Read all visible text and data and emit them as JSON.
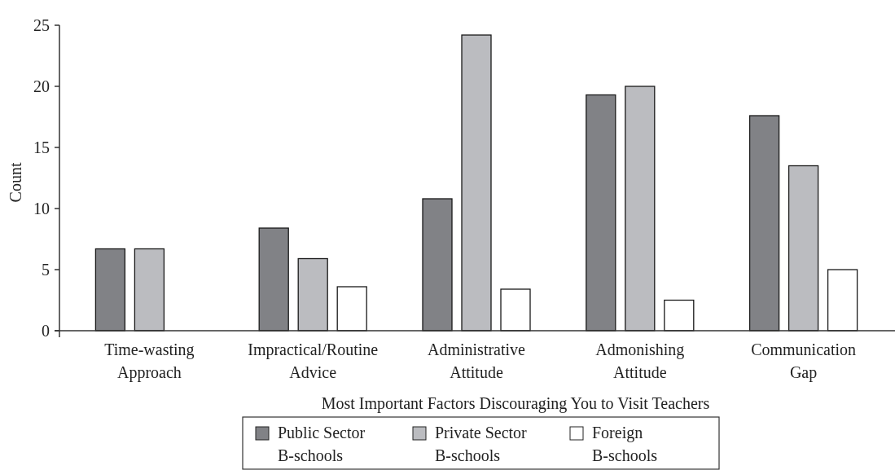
{
  "chart_data": {
    "type": "bar",
    "xlabel": "Most Important Factors Discouraging You to Visit Teachers",
    "ylabel": "Count",
    "categories": [
      "Time-wasting Approach",
      "Impractical/Routine Advice",
      "Administrative Attitude",
      "Admonishing Attitude",
      "Communication Gap"
    ],
    "series": [
      {
        "name": "Public Sector B-schools",
        "color": "#818286",
        "values": [
          6.7,
          8.4,
          10.8,
          19.3,
          17.6
        ]
      },
      {
        "name": "Private Sector B-schools",
        "color": "#bbbcc0",
        "values": [
          6.7,
          5.9,
          24.2,
          20.0,
          13.5
        ]
      },
      {
        "name": "Foreign B-schools",
        "color": "#ffffff",
        "values": [
          null,
          3.6,
          3.4,
          2.5,
          5.0
        ]
      }
    ],
    "ylim": [
      0,
      25
    ],
    "yticks": [
      0,
      5,
      10,
      15,
      20,
      25
    ],
    "grid": false,
    "legend": "bottom"
  }
}
